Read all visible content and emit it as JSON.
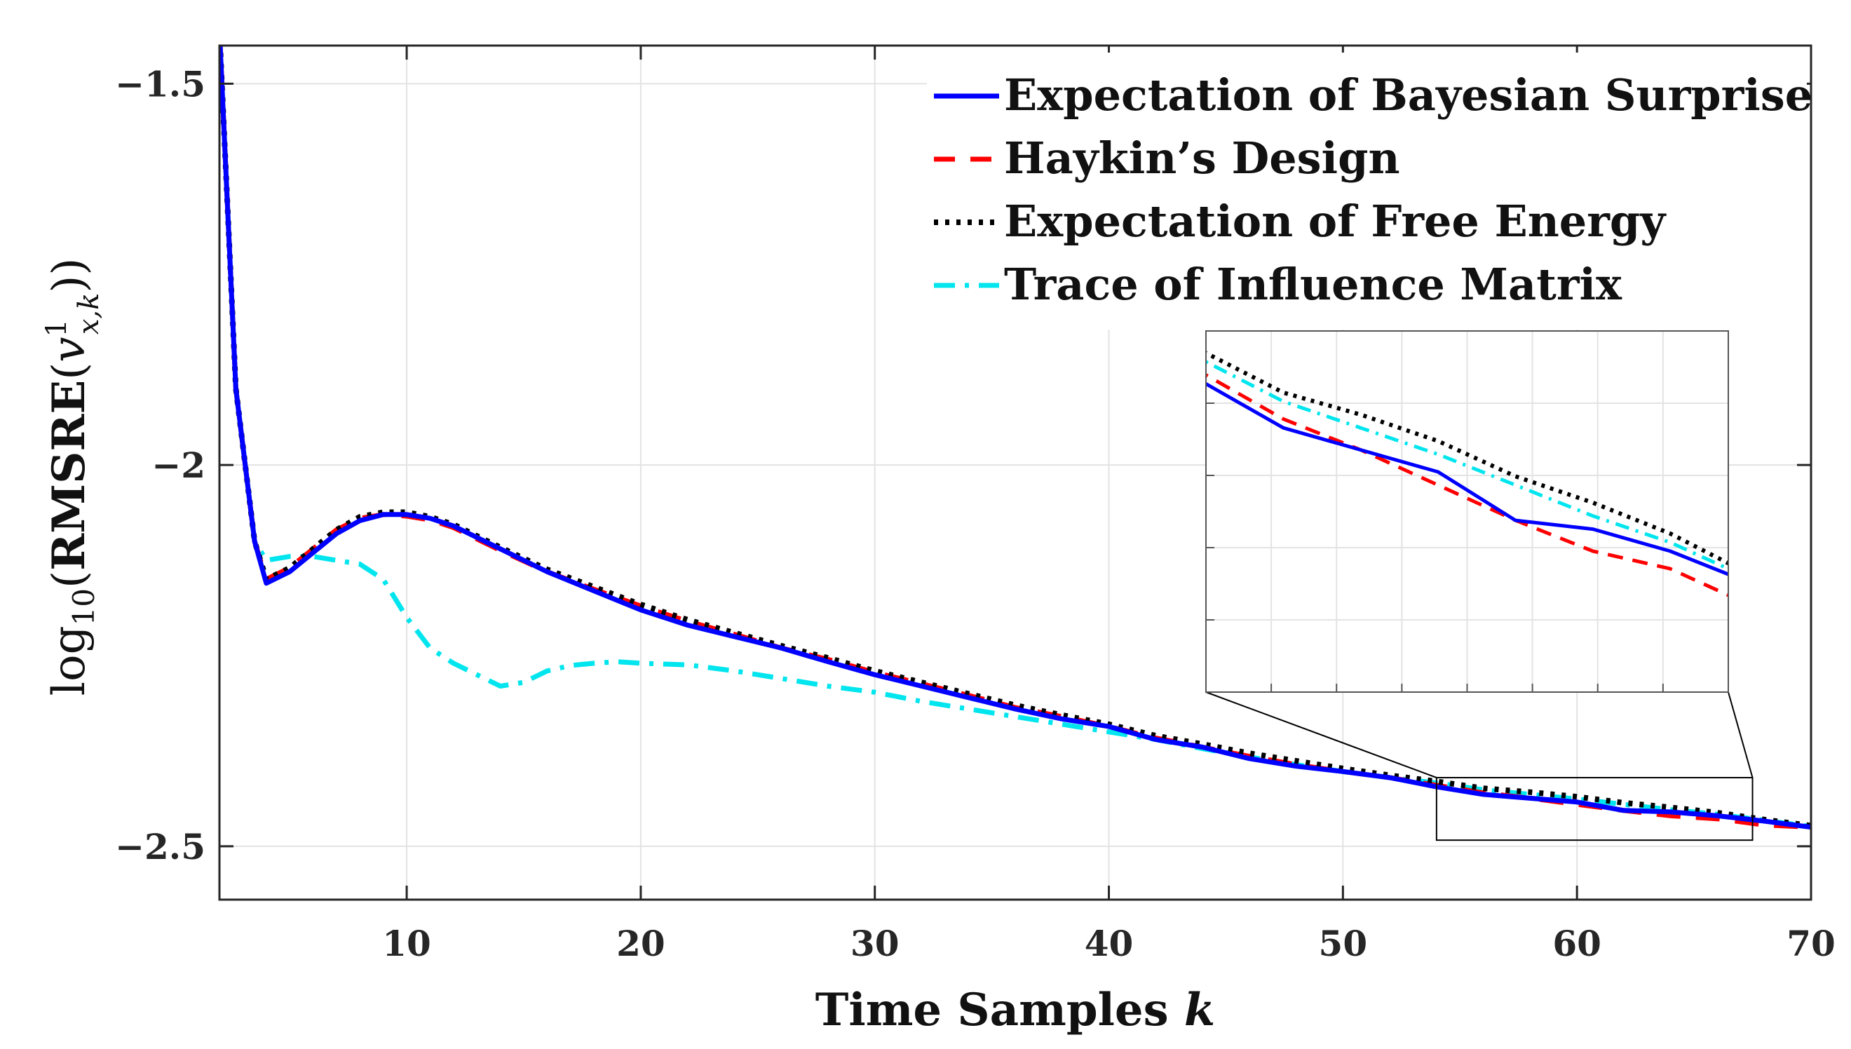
{
  "chart_data": {
    "type": "line",
    "xlabel_main": "Time Samples ",
    "xlabel_var": "k",
    "ylabel": {
      "prefix": "log",
      "base": "10",
      "open": "(",
      "func": "RMSRE",
      "open2": "(",
      "var": "v",
      "sup": "1",
      "sub": "x,k",
      "close": "))"
    },
    "xlim": [
      2,
      70
    ],
    "ylim": [
      -2.57,
      -1.45
    ],
    "xticks": [
      10,
      20,
      30,
      40,
      50,
      60,
      70
    ],
    "xtick_labels": [
      "10",
      "20",
      "30",
      "40",
      "50",
      "60",
      "70"
    ],
    "yticks": [
      -1.5,
      -2,
      -2.5
    ],
    "ytick_labels": [
      "−1.5",
      "−2",
      "−2.5"
    ],
    "grid": true,
    "legend": "top-right",
    "series": [
      {
        "name": "Expectation of Bayesian Surprise",
        "color": "#0000ff",
        "style": "solid",
        "x": [
          2,
          2.7,
          3.5,
          4,
          5,
          6,
          7,
          8,
          9,
          10,
          11,
          12,
          14,
          16,
          18,
          20,
          22,
          24,
          26,
          28,
          30,
          32,
          34,
          36,
          38,
          40,
          42,
          44,
          46,
          48,
          50,
          52,
          54,
          56,
          58,
          60,
          62,
          64,
          66,
          68,
          70
        ],
        "values": [
          -1.43,
          -1.9,
          -2.1,
          -2.155,
          -2.14,
          -2.115,
          -2.09,
          -2.073,
          -2.065,
          -2.065,
          -2.07,
          -2.08,
          -2.11,
          -2.14,
          -2.165,
          -2.19,
          -2.21,
          -2.225,
          -2.24,
          -2.258,
          -2.275,
          -2.29,
          -2.305,
          -2.32,
          -2.333,
          -2.343,
          -2.36,
          -2.37,
          -2.385,
          -2.395,
          -2.402,
          -2.41,
          -2.422,
          -2.432,
          -2.437,
          -2.442,
          -2.453,
          -2.455,
          -2.46,
          -2.467,
          -2.475
        ]
      },
      {
        "name": "Haykin’s Design",
        "color": "#ff0000",
        "style": "dashed",
        "x": [
          2,
          2.7,
          3.5,
          4,
          5,
          6,
          7,
          8,
          9,
          10,
          11,
          12,
          14,
          16,
          18,
          20,
          22,
          24,
          26,
          28,
          30,
          32,
          34,
          36,
          38,
          40,
          42,
          44,
          46,
          48,
          50,
          52,
          54,
          56,
          58,
          60,
          62,
          64,
          66,
          68,
          70
        ],
        "values": [
          -1.43,
          -1.9,
          -2.1,
          -2.15,
          -2.135,
          -2.11,
          -2.085,
          -2.07,
          -2.065,
          -2.067,
          -2.072,
          -2.082,
          -2.112,
          -2.14,
          -2.163,
          -2.185,
          -2.205,
          -2.222,
          -2.24,
          -2.255,
          -2.272,
          -2.287,
          -2.302,
          -2.318,
          -2.33,
          -2.343,
          -2.358,
          -2.37,
          -2.382,
          -2.393,
          -2.402,
          -2.41,
          -2.42,
          -2.43,
          -2.437,
          -2.445,
          -2.453,
          -2.46,
          -2.464,
          -2.472,
          -2.475
        ]
      },
      {
        "name": "Expectation of Free Energy",
        "color": "#000000",
        "style": "dotted",
        "x": [
          2,
          2.7,
          3.5,
          4,
          5,
          6,
          7,
          8,
          9,
          10,
          11,
          12,
          14,
          16,
          18,
          20,
          22,
          24,
          26,
          28,
          30,
          32,
          34,
          36,
          38,
          40,
          42,
          44,
          46,
          48,
          50,
          52,
          54,
          56,
          58,
          60,
          62,
          64,
          66,
          68,
          70
        ],
        "values": [
          -1.43,
          -1.9,
          -2.1,
          -2.15,
          -2.135,
          -2.11,
          -2.085,
          -2.068,
          -2.062,
          -2.062,
          -2.068,
          -2.078,
          -2.108,
          -2.137,
          -2.16,
          -2.183,
          -2.203,
          -2.22,
          -2.237,
          -2.253,
          -2.27,
          -2.285,
          -2.3,
          -2.315,
          -2.328,
          -2.34,
          -2.355,
          -2.366,
          -2.378,
          -2.388,
          -2.398,
          -2.407,
          -2.415,
          -2.424,
          -2.429,
          -2.435,
          -2.443,
          -2.449,
          -2.456,
          -2.465,
          -2.473
        ]
      },
      {
        "name": "Trace of Influence Matrix",
        "color": "#00e5ee",
        "style": "dashdot",
        "x": [
          2,
          2.7,
          3.5,
          4,
          5,
          6,
          7,
          8,
          9,
          10,
          11,
          12,
          13,
          14,
          15,
          16,
          17,
          18,
          19,
          20,
          22,
          24,
          26,
          28,
          30,
          32,
          34,
          36,
          38,
          40,
          42,
          44,
          46,
          48,
          50,
          52,
          54,
          56,
          58,
          60,
          62,
          64,
          66,
          68,
          70
        ],
        "values": [
          -1.43,
          -1.9,
          -2.1,
          -2.125,
          -2.12,
          -2.12,
          -2.125,
          -2.13,
          -2.15,
          -2.2,
          -2.24,
          -2.26,
          -2.275,
          -2.29,
          -2.285,
          -2.27,
          -2.263,
          -2.26,
          -2.258,
          -2.26,
          -2.262,
          -2.27,
          -2.28,
          -2.29,
          -2.298,
          -2.31,
          -2.32,
          -2.33,
          -2.34,
          -2.35,
          -2.36,
          -2.372,
          -2.383,
          -2.393,
          -2.402,
          -2.41,
          -2.417,
          -2.426,
          -2.432,
          -2.438,
          -2.445,
          -2.452,
          -2.458,
          -2.466,
          -2.474
        ]
      }
    ],
    "inset": {
      "type": "zoom",
      "xlim": [
        54,
        67.5
      ],
      "ylim": [
        -2.492,
        -2.41
      ]
    }
  }
}
